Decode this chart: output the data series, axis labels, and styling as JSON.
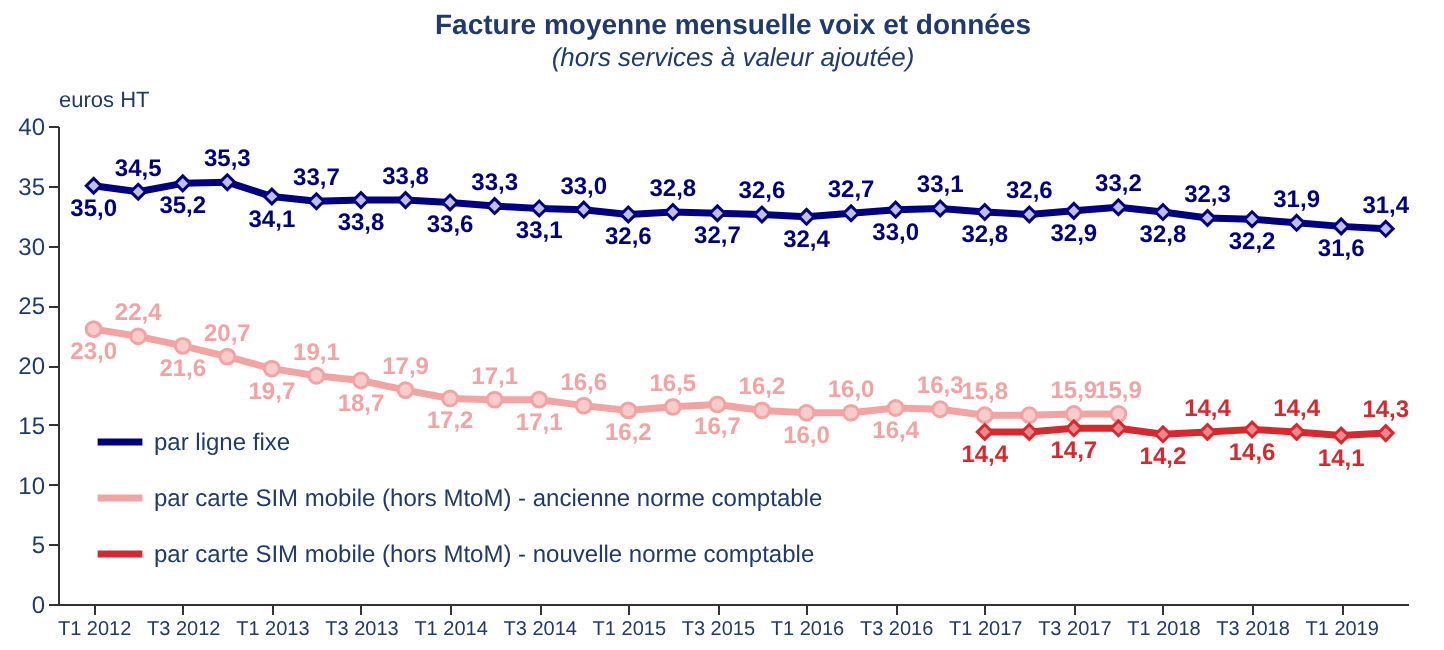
{
  "chart_data": {
    "type": "line",
    "title": "Facture moyenne mensuelle voix et données",
    "subtitle": "(hors services à valeur ajoutée)",
    "ylabel": "euros HT",
    "categories": [
      "T1 2012",
      null,
      "T3 2012",
      null,
      "T1 2013",
      null,
      "T3 2013",
      null,
      "T1 2014",
      null,
      "T3 2014",
      null,
      "T1 2015",
      null,
      "T3 2015",
      null,
      "T1 2016",
      null,
      "T3 2016",
      null,
      "T1 2017",
      null,
      "T3 2017",
      null,
      "T1 2018",
      null,
      "T3 2018",
      null,
      "T1 2019",
      null
    ],
    "ylim": [
      0,
      40
    ],
    "yticks": [
      0,
      5,
      10,
      15,
      20,
      25,
      30,
      35,
      40
    ],
    "grid": false,
    "legend": "bottom left",
    "series": [
      {
        "name": "par ligne fixe",
        "color": "#000080",
        "marker": "diamond",
        "values": [
          35.0,
          34.5,
          35.2,
          35.3,
          34.1,
          33.7,
          33.8,
          33.8,
          33.6,
          33.3,
          33.1,
          33.0,
          32.6,
          32.8,
          32.7,
          32.6,
          32.4,
          32.7,
          33.0,
          33.1,
          32.8,
          32.6,
          32.9,
          33.2,
          32.8,
          32.3,
          32.2,
          31.9,
          31.6,
          31.4
        ],
        "value_labels": [
          "35,0",
          "34,5",
          "35,2",
          "35,3",
          "34,1",
          "33,7",
          "33,8",
          "33,8",
          "33,6",
          "33,3",
          "33,1",
          "33,0",
          "32,6",
          "32,8",
          "32,7",
          "32,6",
          "32,4",
          "32,7",
          "33,0",
          "33,1",
          "32,8",
          "32,6",
          "32,9",
          "33,2",
          "32,8",
          "32,3",
          "32,2",
          "31,9",
          "31,6",
          "31,4"
        ]
      },
      {
        "name": "par carte SIM mobile (hors MtoM)  - ancienne norme comptable",
        "color": "#f4a3a3",
        "marker": "circle",
        "values": [
          23.0,
          22.4,
          21.6,
          20.7,
          19.7,
          19.1,
          18.7,
          17.9,
          17.2,
          17.1,
          17.1,
          16.6,
          16.2,
          16.5,
          16.7,
          16.2,
          16.0,
          16.0,
          16.4,
          16.3,
          15.8,
          15.8,
          15.9,
          15.9,
          null,
          null,
          null,
          null,
          null,
          null
        ],
        "value_labels": [
          "23,0",
          "22,4",
          "21,6",
          "20,7",
          "19,7",
          "19,1",
          "18,7",
          "17,9",
          "17,2",
          "17,1",
          "17,1",
          "16,6",
          "16,2",
          "16,5",
          "16,7",
          "16,2",
          "16,0",
          "16,0",
          "16,4",
          "16,3",
          "15,8",
          null,
          "15,9",
          "15,9",
          null,
          null,
          null,
          null,
          null,
          null
        ]
      },
      {
        "name": "par carte SIM mobile (hors MtoM)  - nouvelle norme comptable",
        "color": "#d7282f",
        "marker": "diamond",
        "values": [
          null,
          null,
          null,
          null,
          null,
          null,
          null,
          null,
          null,
          null,
          null,
          null,
          null,
          null,
          null,
          null,
          null,
          null,
          null,
          null,
          14.4,
          14.4,
          14.7,
          14.7,
          14.2,
          14.4,
          14.6,
          14.4,
          14.1,
          14.3
        ],
        "value_labels": [
          null,
          null,
          null,
          null,
          null,
          null,
          null,
          null,
          null,
          null,
          null,
          null,
          null,
          null,
          null,
          null,
          null,
          null,
          null,
          null,
          "14,4",
          null,
          "14,7",
          null,
          "14,2",
          "14,4",
          "14,6",
          "14,4",
          "14,1",
          "14,3"
        ]
      }
    ]
  }
}
